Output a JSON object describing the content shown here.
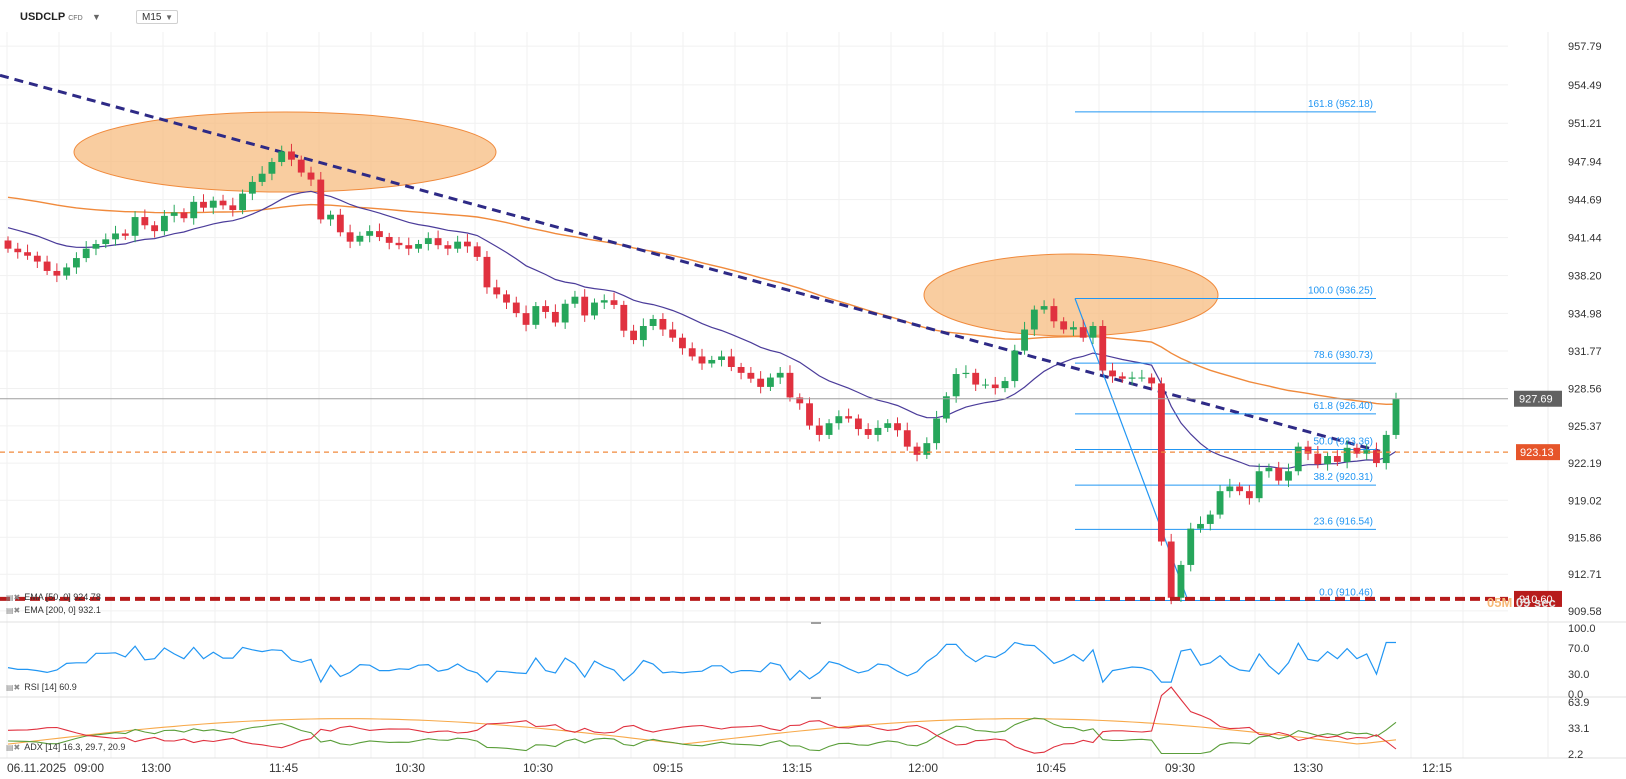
{
  "header": {
    "symbol": "USDCLP",
    "symbol_type": "CFD",
    "timeframe": "M15"
  },
  "indicators": {
    "ema50": "EMA [50, 0] 924.78",
    "ema200": "EMA [200, 0] 932.1",
    "rsi": "RSI [14] 60.9",
    "adx": "ADX [14] 16.3, 29.7, 20.9"
  },
  "countdown": {
    "minutes": "05M",
    "seconds": "09 sec"
  },
  "colors": {
    "bull": "#26a65b",
    "bear": "#e0313f",
    "ema50": "#4b3c9a",
    "ema200": "#f08a3c",
    "fib": "#2196f3",
    "trendline": "#2e2a86",
    "support": "#b71c1c",
    "highlight": "#f7b877",
    "rsi": "#2196f3",
    "adx_plus": "#e0313f",
    "adx_minus": "#5a9e3a",
    "adx_main": "#f7a94a"
  },
  "chart_data": {
    "type": "candlestick",
    "ylim": [
      908.8,
      959.0
    ],
    "y_ticks": [
      "957.79",
      "954.49",
      "951.21",
      "947.94",
      "944.69",
      "941.44",
      "938.20",
      "934.98",
      "931.77",
      "928.56",
      "925.37",
      "922.19",
      "919.02",
      "915.86",
      "912.71",
      "909.58"
    ],
    "x_labels": [
      "06.11.2025",
      "09:00",
      "13:00",
      "11:45",
      "10:30",
      "10:30",
      "09:15",
      "13:15",
      "12:00",
      "10:45",
      "09:30",
      "13:30",
      "12:15"
    ],
    "current_price": {
      "value": 927.69,
      "label": "927.69"
    },
    "order_line": {
      "value": 923.13,
      "label": "923.13"
    },
    "support_line": {
      "value": 910.6,
      "label": "910.60"
    },
    "fibonacci": [
      {
        "level": "161.8",
        "price": 952.18,
        "label": "161.8 (952.18)"
      },
      {
        "level": "100.0",
        "price": 936.25,
        "label": "100.0 (936.25)"
      },
      {
        "level": "78.6",
        "price": 930.73,
        "label": "78.6 (930.73)"
      },
      {
        "level": "61.8",
        "price": 926.4,
        "label": "61.8 (926.40)"
      },
      {
        "level": "50.0",
        "price": 923.36,
        "label": "50.0 (923.36)"
      },
      {
        "level": "38.2",
        "price": 920.31,
        "label": "38.2 (920.31)"
      },
      {
        "level": "23.6",
        "price": 916.54,
        "label": "23.6 (916.54)"
      },
      {
        "level": "0.0",
        "price": 910.46,
        "label": "0.0 (910.46)"
      }
    ],
    "candle_closes": [
      940.5,
      940.2,
      939.9,
      939.4,
      938.6,
      938.2,
      938.9,
      939.7,
      940.5,
      940.9,
      941.3,
      941.8,
      941.6,
      943.2,
      942.5,
      942.0,
      943.3,
      943.6,
      943.1,
      944.5,
      944.0,
      944.6,
      944.2,
      943.8,
      945.2,
      946.2,
      946.9,
      947.9,
      948.8,
      948.1,
      947.0,
      946.4,
      943.0,
      943.4,
      941.9,
      941.1,
      941.6,
      942.0,
      941.5,
      941.0,
      940.8,
      940.5,
      940.9,
      941.4,
      940.8,
      940.5,
      941.1,
      940.7,
      939.8,
      937.2,
      936.6,
      935.9,
      935.0,
      934.0,
      935.6,
      935.1,
      934.2,
      935.8,
      936.4,
      934.8,
      935.9,
      936.1,
      935.7,
      933.5,
      932.7,
      933.9,
      934.5,
      933.6,
      932.9,
      932.0,
      931.3,
      930.7,
      931.0,
      931.3,
      930.4,
      929.9,
      929.4,
      928.7,
      929.5,
      929.9,
      927.8,
      927.3,
      925.4,
      924.6,
      925.6,
      926.2,
      926.0,
      925.1,
      924.6,
      925.2,
      925.6,
      925.0,
      923.6,
      922.9,
      923.9,
      926.0,
      927.9,
      929.8,
      929.9,
      928.9,
      928.9,
      928.6,
      929.2,
      931.8,
      933.6,
      935.3,
      935.6,
      934.3,
      933.6,
      933.8,
      932.9,
      933.9,
      930.1,
      929.6,
      929.4,
      929.5,
      929.5,
      929.0,
      915.5,
      910.7,
      913.5,
      916.6,
      917.0,
      917.8,
      919.8,
      920.2,
      919.8,
      919.2,
      921.5,
      921.8,
      920.7,
      921.5,
      923.6,
      923.0,
      922.1,
      922.8,
      922.3,
      923.5,
      923.0,
      923.3,
      922.2,
      924.6,
      927.7
    ],
    "rsi_values": {
      "ylim": [
        0,
        100
      ],
      "levels": [
        "100.0",
        "70.0",
        "30.0",
        "0.0"
      ],
      "latest": 60.9
    },
    "adx_values": {
      "ylim": [
        0,
        66
      ],
      "levels": [
        "63.9",
        "33.1",
        "2.2"
      ],
      "latest": [
        16.3,
        29.7,
        20.9
      ]
    }
  }
}
